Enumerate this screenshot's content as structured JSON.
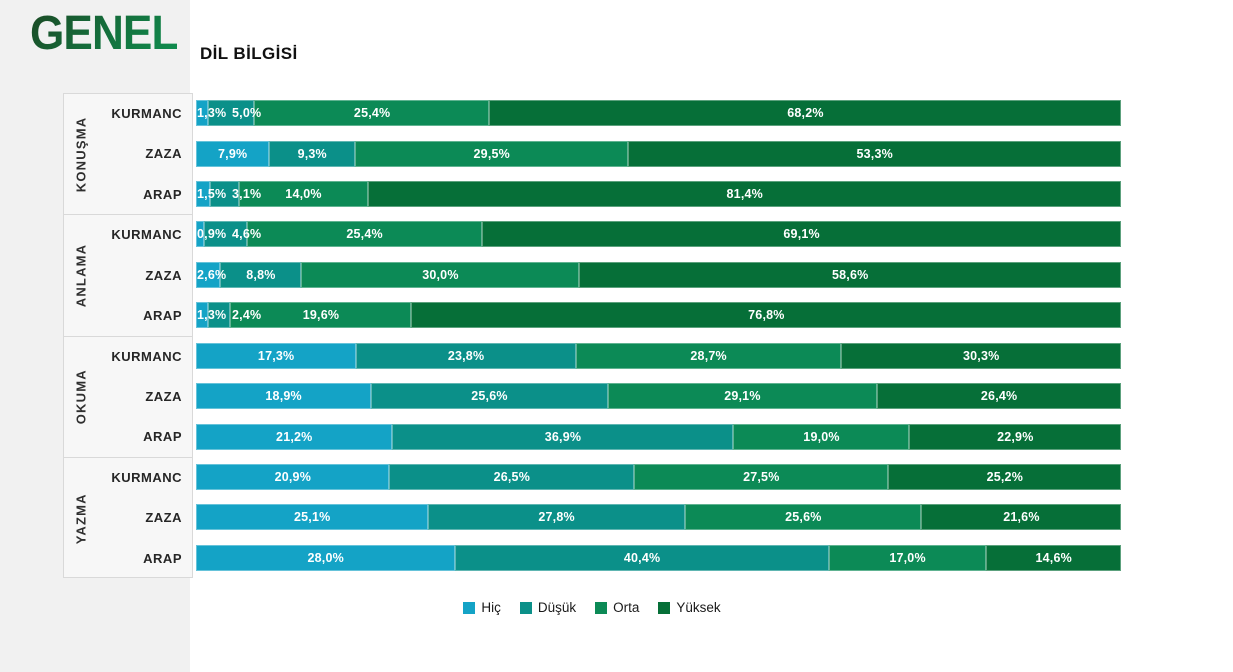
{
  "header": {
    "logo": "GENEL",
    "title": "DİL BİLGİSİ"
  },
  "chart_data": {
    "type": "bar",
    "subtype": "horizontal-stacked-percent",
    "title": "DİL BİLGİSİ",
    "xlim": [
      0,
      100
    ],
    "legend_position": "bottom-center",
    "grid": false,
    "series_colors": {
      "hic": "#14a3c6",
      "dusuk": "#0b9089",
      "orta": "#0c8a56",
      "yuksek": "#066f38"
    },
    "series": [
      {
        "name": "Hiç",
        "color": "#14a3c6"
      },
      {
        "name": "Düşük",
        "color": "#0b9089"
      },
      {
        "name": "Orta",
        "color": "#0c8a56"
      },
      {
        "name": "Yüksek",
        "color": "#066f38"
      }
    ],
    "groups": [
      {
        "label": "KONUŞMA",
        "rows": [
          {
            "label": "KURMANC",
            "values": [
              1.3,
              5.0,
              25.4,
              68.2
            ],
            "labels": [
              "1,3%",
              "5,0%",
              "25,4%",
              "68,2%"
            ]
          },
          {
            "label": "ZAZA",
            "values": [
              7.9,
              9.3,
              29.5,
              53.3
            ],
            "labels": [
              "7,9%",
              "9,3%",
              "29,5%",
              "53,3%"
            ]
          },
          {
            "label": "ARAP",
            "values": [
              1.5,
              3.1,
              14.0,
              81.4
            ],
            "labels": [
              "1,5%",
              "3,1%",
              "14,0%",
              "81,4%"
            ]
          }
        ]
      },
      {
        "label": "ANLAMA",
        "rows": [
          {
            "label": "KURMANC",
            "values": [
              0.9,
              4.6,
              25.4,
              69.1
            ],
            "labels": [
              "0,9%",
              "4,6%",
              "25,4%",
              "69,1%"
            ]
          },
          {
            "label": "ZAZA",
            "values": [
              2.6,
              8.8,
              30.0,
              58.6
            ],
            "labels": [
              "2,6%",
              "8,8%",
              "30,0%",
              "58,6%"
            ]
          },
          {
            "label": "ARAP",
            "values": [
              1.3,
              2.4,
              19.6,
              76.8
            ],
            "labels": [
              "1,3%",
              "2,4%",
              "19,6%",
              "76,8%"
            ]
          }
        ]
      },
      {
        "label": "OKUMA",
        "rows": [
          {
            "label": "KURMANC",
            "values": [
              17.3,
              23.8,
              28.7,
              30.3
            ],
            "labels": [
              "17,3%",
              "23,8%",
              "28,7%",
              "30,3%"
            ]
          },
          {
            "label": "ZAZA",
            "values": [
              18.9,
              25.6,
              29.1,
              26.4
            ],
            "labels": [
              "18,9%",
              "25,6%",
              "29,1%",
              "26,4%"
            ]
          },
          {
            "label": "ARAP",
            "values": [
              21.2,
              36.9,
              19.0,
              22.9
            ],
            "labels": [
              "21,2%",
              "36,9%",
              "19,0%",
              "22,9%"
            ]
          }
        ]
      },
      {
        "label": "YAZMA",
        "rows": [
          {
            "label": "KURMANC",
            "values": [
              20.9,
              26.5,
              27.5,
              25.2
            ],
            "labels": [
              "20,9%",
              "26,5%",
              "27,5%",
              "25,2%"
            ]
          },
          {
            "label": "ZAZA",
            "values": [
              25.1,
              27.8,
              25.6,
              21.6
            ],
            "labels": [
              "25,1%",
              "27,8%",
              "25,6%",
              "21,6%"
            ]
          },
          {
            "label": "ARAP",
            "values": [
              28.0,
              40.4,
              17.0,
              14.6
            ],
            "labels": [
              "28,0%",
              "40,4%",
              "17,0%",
              "14,6%"
            ]
          }
        ]
      }
    ]
  }
}
